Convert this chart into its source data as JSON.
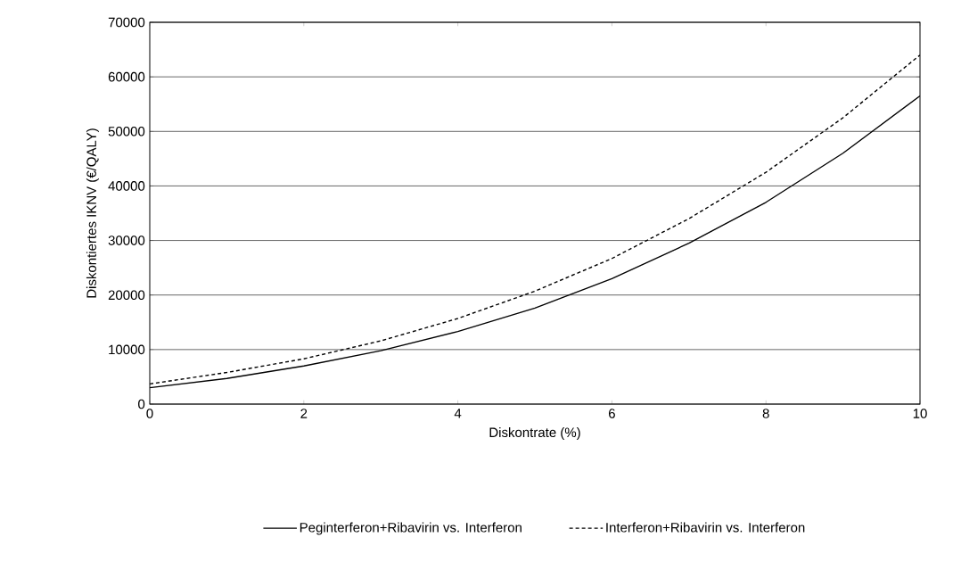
{
  "chart_data": {
    "type": "line",
    "xlabel": "Diskontrate (%)",
    "ylabel": "Diskontiertes IKNV (€/QALY)",
    "x": [
      0,
      1,
      2,
      3,
      4,
      5,
      6,
      7,
      8,
      9,
      10
    ],
    "series": [
      {
        "name": "Peginterferon+Ribavirin vs. Interferon",
        "color": "#000000",
        "line_style": "solid",
        "values": [
          3000,
          4700,
          7000,
          9800,
          13300,
          17600,
          23000,
          29500,
          37000,
          46000,
          56500
        ]
      },
      {
        "name": "Interferon+Ribavirin vs. Interferon",
        "color": "#000000",
        "line_style": "dashed",
        "values": [
          3700,
          5800,
          8300,
          11600,
          15700,
          20700,
          26700,
          34000,
          42500,
          52500,
          64000
        ]
      }
    ],
    "xlim": [
      0,
      10
    ],
    "xticks": [
      0,
      2,
      4,
      6,
      8,
      10
    ],
    "ylim": [
      0,
      70000
    ],
    "yticks": [
      0,
      10000,
      20000,
      30000,
      40000,
      50000,
      60000,
      70000
    ],
    "grid": "y",
    "legend": "bottom",
    "marker": "none"
  }
}
